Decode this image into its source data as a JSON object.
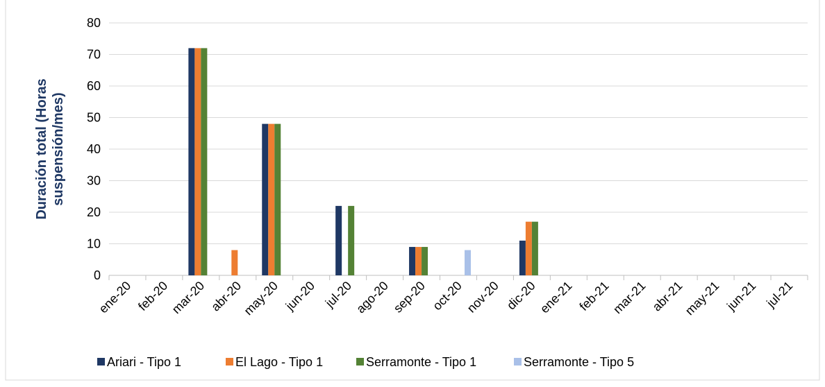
{
  "chart_data": {
    "type": "bar",
    "y_label": [
      "Duración total (Horas",
      "suspensión/mes)"
    ],
    "categories": [
      "ene-20",
      "feb-20",
      "mar-20",
      "abr-20",
      "may-20",
      "jun-20",
      "jul-20",
      "ago-20",
      "sep-20",
      "oct-20",
      "nov-20",
      "dic-20",
      "ene-21",
      "feb-21",
      "mar-21",
      "abr-21",
      "may-21",
      "jun-21",
      "jul-21"
    ],
    "series": [
      {
        "name": "Ariari - Tipo 1",
        "color": "#1f3864",
        "values": [
          0,
          0,
          72,
          0,
          48,
          0,
          22,
          0,
          9,
          0,
          0,
          11,
          0,
          0,
          0,
          0,
          0,
          0,
          0
        ]
      },
      {
        "name": "El Lago - Tipo 1",
        "color": "#ed7d31",
        "values": [
          0,
          0,
          72,
          8,
          48,
          0,
          0,
          0,
          9,
          0,
          0,
          17,
          0,
          0,
          0,
          0,
          0,
          0,
          0
        ]
      },
      {
        "name": "Serramonte - Tipo 1",
        "color": "#548235",
        "values": [
          0,
          0,
          72,
          0,
          48,
          0,
          22,
          0,
          9,
          0,
          0,
          17,
          0,
          0,
          0,
          0,
          0,
          0,
          0
        ]
      },
      {
        "name": "Serramonte - Tipo 5",
        "color": "#a9c0e8",
        "values": [
          0,
          0,
          0,
          0,
          0,
          0,
          0,
          0,
          0,
          8,
          0,
          0,
          0,
          0,
          0,
          0,
          0,
          0,
          0
        ]
      }
    ],
    "ylim": [
      0,
      80
    ],
    "yticks": [
      0,
      10,
      20,
      30,
      40,
      50,
      60,
      70,
      80
    ],
    "grid": true,
    "legend": "bottom"
  }
}
